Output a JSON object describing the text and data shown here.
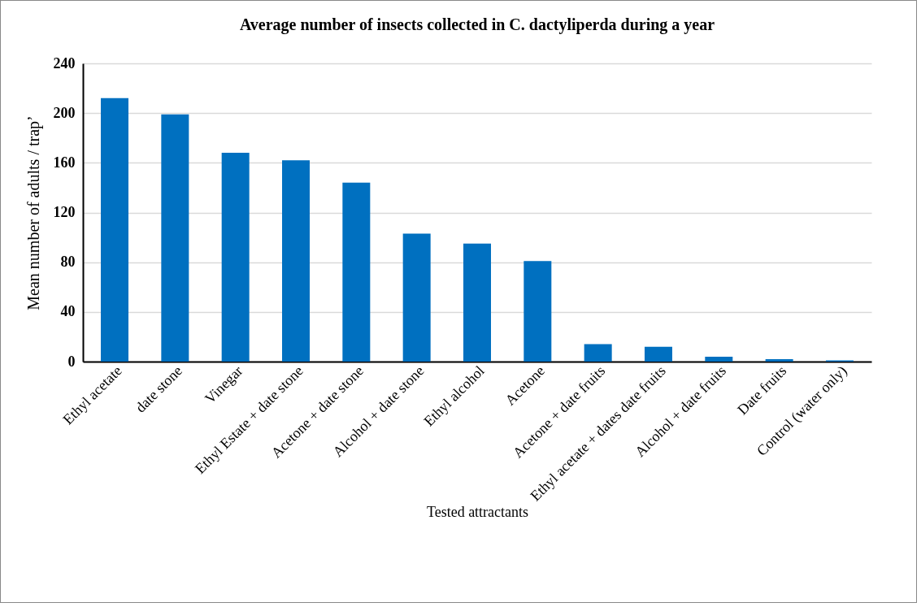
{
  "chart_data": {
    "type": "bar",
    "title": "Average number of insects collected in C. dactyliperda during a year",
    "xlabel": "Tested attractants",
    "ylabel": "Mean number of adults / trap’",
    "categories": [
      "Ethyl acetate",
      "date stone",
      "Vinegar",
      "Ethyl Estate + date stone",
      "Acetone + date stone",
      "Alcohol + date stone",
      "Ethyl alcohol",
      "Acetone",
      "Acetone + date fruits",
      "Ethyl acetate + dates date fruits",
      "Alcohol + date fruits",
      "Date fruits",
      "Control (water only)"
    ],
    "values": [
      212,
      199,
      168,
      162,
      144,
      103,
      95,
      81,
      14,
      12,
      4,
      2,
      1
    ],
    "color": "#0070c0",
    "ylim": [
      0,
      240
    ],
    "yticks": [
      0,
      40,
      80,
      120,
      160,
      200,
      240
    ],
    "grid": "y"
  }
}
